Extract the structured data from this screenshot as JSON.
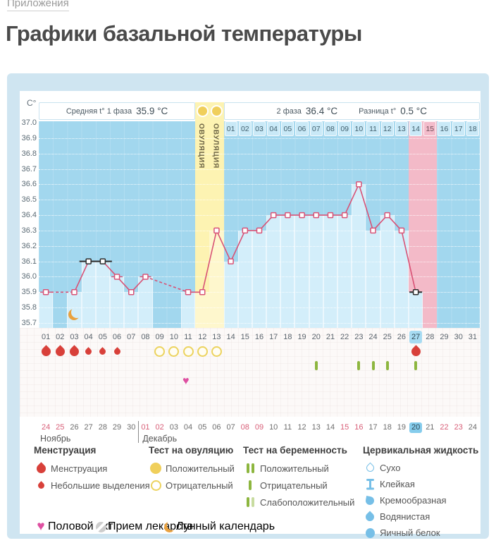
{
  "breadcrumb": {
    "label": "Приложения"
  },
  "page_title": "Графики базальной температуры",
  "axis_unit": "C°",
  "chart_header": {
    "phase1_label": "Средняя t° 1 фаза",
    "phase1_value": "35.9 °C",
    "phase2_label": "2 фаза",
    "phase2_value": "36.4 °C",
    "diff_label": "Разница t°",
    "diff_value": "0.5 °C",
    "ovulation_column_label": "ОВУЛЯЦИЯ"
  },
  "chart_data": {
    "type": "line",
    "ylim": [
      35.7,
      37.0
    ],
    "yticks": [
      "37.0",
      "36.9",
      "36.8",
      "36.7",
      "36.6",
      "36.5",
      "36.4",
      "36.3",
      "36.2",
      "36.1",
      "36.0",
      "35.9",
      "35.8",
      "35.7"
    ],
    "cycle_days": [
      "01",
      "02",
      "03",
      "04",
      "05",
      "06",
      "07",
      "08",
      "09",
      "10",
      "11",
      "12",
      "13",
      "14",
      "15",
      "16",
      "17",
      "18",
      "19",
      "20",
      "21",
      "22",
      "23",
      "24",
      "25",
      "26",
      "27",
      "28",
      "29",
      "30",
      "31"
    ],
    "temps_by_day": {
      "1": 35.9,
      "3": 35.9,
      "4": 36.1,
      "5": 36.1,
      "6": 36.0,
      "7": 35.9,
      "8": 36.0,
      "11": 35.9,
      "12": 35.9,
      "13": 36.3,
      "14": 36.1,
      "15": 36.3,
      "16": 36.3,
      "17": 36.4,
      "18": 36.4,
      "19": 36.4,
      "20": 36.4,
      "21": 36.4,
      "22": 36.4,
      "23": 36.6,
      "24": 36.3,
      "25": 36.4,
      "26": 36.3,
      "27": 35.9
    },
    "black_marker_days": [
      4,
      5,
      27
    ],
    "coverline": {
      "from_day": 4,
      "to_day": 5,
      "temp": 36.1
    },
    "serif_marker_days": [
      1,
      6,
      8
    ],
    "ovulation_days": [
      12,
      13
    ],
    "predicted_period_days": [
      27,
      28
    ],
    "current_cycle_day": 27,
    "phase2_start_cycle_day": 14,
    "phase2_numbers": [
      "01",
      "02",
      "03",
      "04",
      "05",
      "06",
      "07",
      "08",
      "09",
      "10",
      "11",
      "12",
      "13",
      "14",
      "15",
      "16",
      "17",
      "18"
    ],
    "phase2_highlight_number": "15",
    "events": {
      "menstruation_heavy_days": [
        1,
        2,
        3,
        27
      ],
      "menstruation_light_days": [
        4,
        5,
        6
      ],
      "ovulation_test_negative_days": [
        9,
        10,
        11,
        12,
        13
      ],
      "pregnancy_test_negative_days": [
        20,
        23,
        24,
        25,
        27
      ],
      "intercourse_days": [
        11
      ],
      "lunar_calendar_days": [
        3
      ]
    },
    "calendar": {
      "dates": [
        "24",
        "25",
        "26",
        "27",
        "28",
        "29",
        "30",
        "01",
        "02",
        "03",
        "04",
        "05",
        "06",
        "07",
        "08",
        "09",
        "10",
        "11",
        "12",
        "13",
        "14",
        "15",
        "16",
        "17",
        "18",
        "19",
        "20",
        "21",
        "22",
        "23",
        "24"
      ],
      "months": [
        {
          "name": "Ноябрь",
          "from_day": 1,
          "to_day": 7
        },
        {
          "name": "Декабрь",
          "from_day": 8,
          "to_day": 31
        }
      ],
      "weekend_days": [
        1,
        2,
        8,
        9,
        15,
        16,
        22,
        23,
        29,
        30
      ],
      "today_day": 27
    }
  },
  "legend": {
    "groups": [
      {
        "title": "Менструация",
        "items": [
          {
            "icon": "drop-large",
            "label": "Менструация"
          },
          {
            "icon": "drop-small",
            "label": "Небольшие выделения"
          }
        ]
      },
      {
        "title": "Тест на овуляцию",
        "items": [
          {
            "icon": "circle-filled",
            "label": "Положительный"
          },
          {
            "icon": "circle-outline",
            "label": "Отрицательный"
          }
        ]
      },
      {
        "title": "Тест на беременность",
        "items": [
          {
            "icon": "bars-two",
            "label": "Положительный"
          },
          {
            "icon": "bar-one",
            "label": "Отрицательный"
          },
          {
            "icon": "bars-weak",
            "label": "Слабоположительный"
          }
        ]
      },
      {
        "title": "Цервикальная жидкость",
        "items": [
          {
            "icon": "drop-outline-blue",
            "label": "Сухо"
          },
          {
            "icon": "ibeam-blue",
            "label": "Клейкая"
          },
          {
            "icon": "comma-blue",
            "label": "Кремообразная"
          },
          {
            "icon": "drop-blue",
            "label": "Водянистая"
          },
          {
            "icon": "egg-blue",
            "label": "Яичный белок"
          }
        ]
      }
    ],
    "footer": [
      {
        "icon": "heart",
        "label": "Половой акт"
      },
      {
        "icon": "pill",
        "label": "Прием лекарств"
      },
      {
        "icon": "moon",
        "label": "Лунный календарь"
      }
    ]
  },
  "colors": {
    "line": "#d85276",
    "chart_bg": "#a2d7ee",
    "column_bar": "#d3eefa",
    "ovulation_column": "#fdf3b2",
    "period_column": "#f3bac8",
    "highlight_day": "#a7dbf2",
    "menstruation_red": "#d8403a",
    "test_green": "#8db63f",
    "ovulation_yellow": "#f0cf5b",
    "heart_pink": "#de4fa1",
    "moon_orange": "#e9a13e",
    "fluid_blue": "#76bfe7",
    "weekend_red": "#d85f78",
    "coverline_black": "#2b2b2b"
  }
}
